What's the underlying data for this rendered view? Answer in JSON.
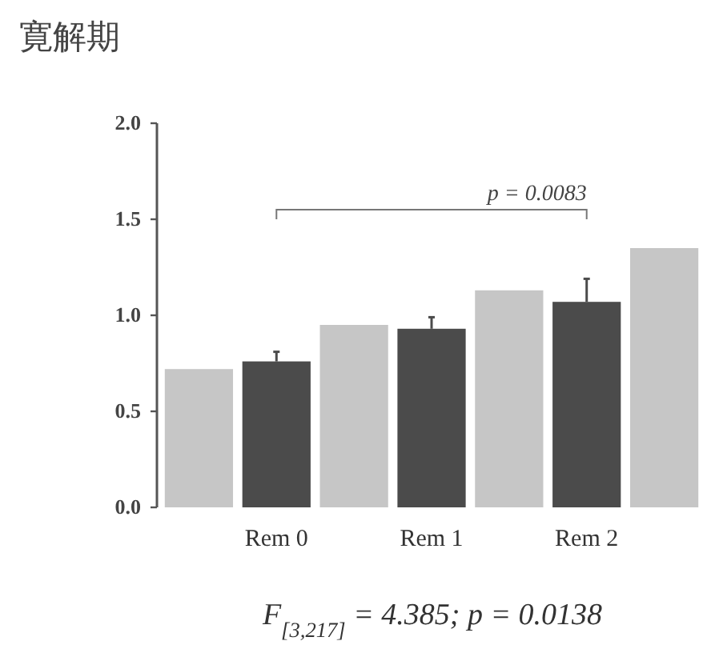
{
  "chart_data": {
    "type": "bar",
    "title": "寛解期",
    "categories": [
      null,
      "Rem 0",
      null,
      "Rem 1",
      null,
      "Rem 2",
      null
    ],
    "values": [
      0.72,
      0.76,
      0.95,
      0.93,
      1.13,
      1.07,
      1.35
    ],
    "colors": [
      "#c6c6c6",
      "#4b4b4b",
      "#c6c6c6",
      "#4b4b4b",
      "#c6c6c6",
      "#4b4b4b",
      "#c6c6c6"
    ],
    "errors": [
      null,
      0.05,
      null,
      0.06,
      null,
      0.12,
      null
    ],
    "ylim": [
      0,
      2
    ],
    "yticks": [
      {
        "value": 0,
        "label": "0.0"
      },
      {
        "value": 0.5,
        "label": "0.5"
      },
      {
        "value": 1,
        "label": "1.0"
      },
      {
        "value": 1.5,
        "label": "1.5"
      },
      {
        "value": 2,
        "label": "2.0"
      }
    ],
    "annotations": [
      "p = 0.0083",
      "F$_{[3,217]}$ = 4.385; p = 0.0138"
    ]
  }
}
